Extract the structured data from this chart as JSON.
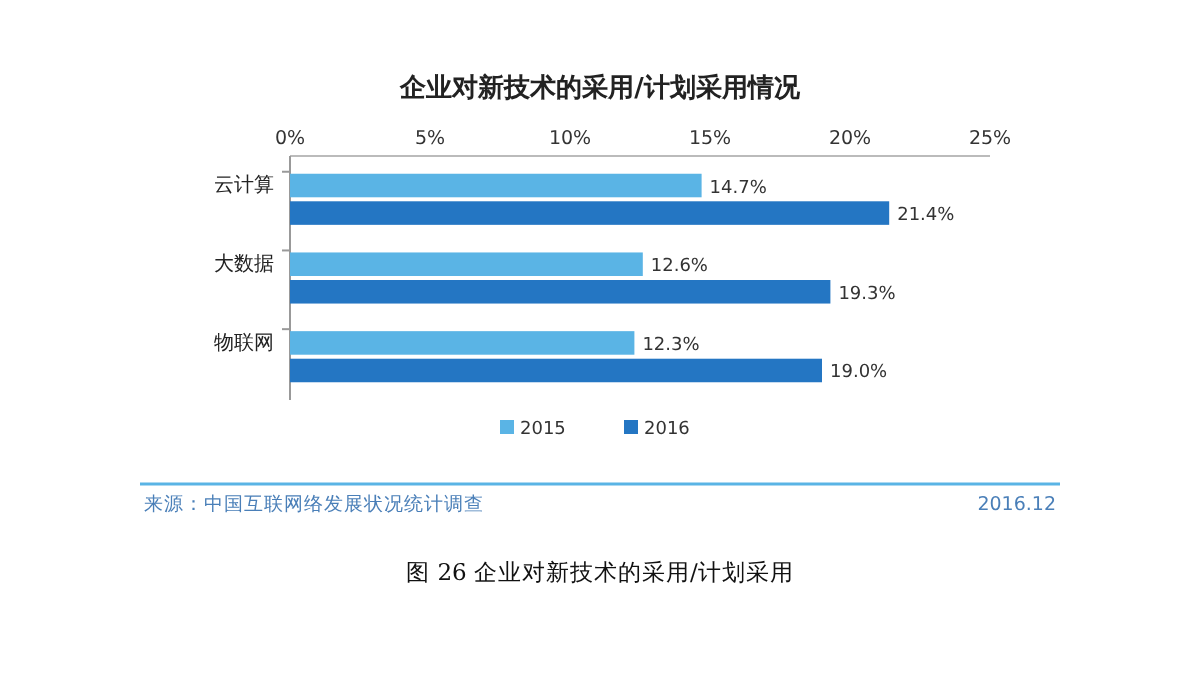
{
  "chart_data": {
    "type": "bar",
    "orientation": "horizontal",
    "title": "企业对新技术的采用/计划采用情况",
    "categories": [
      "云计算",
      "大数据",
      "物联网"
    ],
    "series": [
      {
        "name": "2015",
        "color": "#5ab4e5",
        "values": [
          14.7,
          12.6,
          12.3
        ],
        "value_labels": [
          "14.7%",
          "12.6%",
          "12.3%"
        ]
      },
      {
        "name": "2016",
        "color": "#2476c3",
        "values": [
          21.4,
          19.3,
          19.0
        ],
        "value_labels": [
          "21.4%",
          "19.3%",
          "19.0%"
        ]
      }
    ],
    "xlim": [
      0,
      25
    ],
    "xticks": [
      {
        "value": 0,
        "label": "0%"
      },
      {
        "value": 5,
        "label": "5%"
      },
      {
        "value": 10,
        "label": "10%"
      },
      {
        "value": 15,
        "label": "15%"
      },
      {
        "value": 20,
        "label": "20%"
      },
      {
        "value": 25,
        "label": "25%"
      }
    ],
    "legend": "bottom",
    "grid": false,
    "annotations": [
      "来源：中国互联网络发展状况统计调查",
      "2016.12",
      "图 26    企业对新技术的采用/计划采用"
    ]
  }
}
